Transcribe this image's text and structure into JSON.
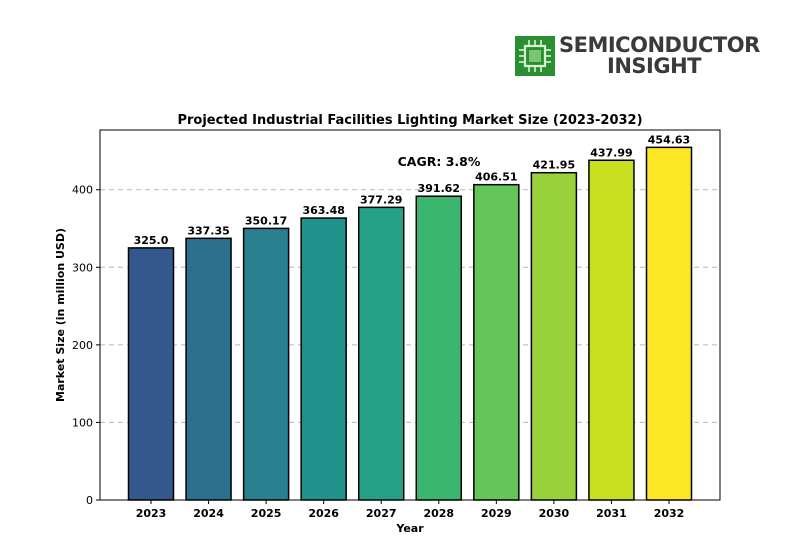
{
  "logo": {
    "line1": "SEMICONDUCTOR",
    "line2": "INSIGHT",
    "icon": "chip-icon",
    "color": "#2e9e35"
  },
  "chart_data": {
    "type": "bar",
    "title": "Projected Industrial Facilities Lighting Market Size (2023-2032)",
    "xlabel": "Year",
    "ylabel": "Market Size (in million USD)",
    "annotation": "CAGR: 3.8%",
    "categories": [
      "2023",
      "2024",
      "2025",
      "2026",
      "2027",
      "2028",
      "2029",
      "2030",
      "2031",
      "2032"
    ],
    "values": [
      325.0,
      337.35,
      350.17,
      363.48,
      377.29,
      391.62,
      406.51,
      421.95,
      437.99,
      454.63
    ],
    "value_labels": [
      "325.0",
      "337.35",
      "350.17",
      "363.48",
      "377.29",
      "391.62",
      "406.51",
      "421.95",
      "437.99",
      "454.63"
    ],
    "ylim": [
      0,
      477
    ],
    "yticks": [
      0,
      100,
      200,
      300,
      400
    ],
    "grid": "horizontal dashed",
    "colors": [
      "#33598c",
      "#2d6f8e",
      "#28808e",
      "#20928c",
      "#25a285",
      "#3bb66f",
      "#64c559",
      "#99d23d",
      "#c9e020",
      "#fde725"
    ]
  }
}
